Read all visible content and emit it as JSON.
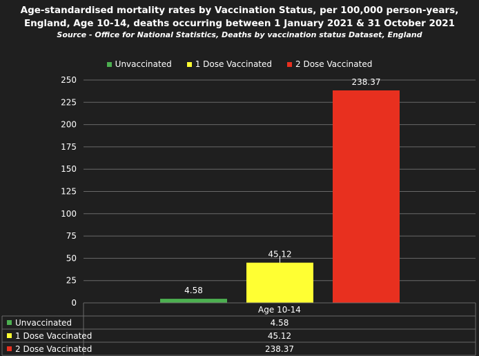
{
  "title_line1": "Age-standardised mortality rates by Vaccination Status, per 100,000 person-years,",
  "title_line2": "England, Age 10-14, deaths occurring between 1 January 2021 & 31 October 2021",
  "subtitle": "Source - Office for National Statistics, Deaths by vaccination status Dataset, England",
  "colors": {
    "unvaccinated": "#4caf50",
    "dose1": "#ffff33",
    "dose2": "#e8301f",
    "background": "#1f1f1f",
    "grid": "#6a6a6a"
  },
  "chart_data": {
    "type": "bar",
    "categories": [
      "Age 10-14"
    ],
    "series": [
      {
        "name": "Unvaccinated",
        "values": [
          4.58
        ],
        "labels": [
          "4.58"
        ]
      },
      {
        "name": "1 Dose Vaccinated",
        "values": [
          45.12
        ],
        "labels": [
          "45.12"
        ]
      },
      {
        "name": "2 Dose Vaccinated",
        "values": [
          238.37
        ],
        "labels": [
          "238.37"
        ]
      }
    ],
    "ylim": [
      0,
      250
    ],
    "yticks": [
      0,
      25,
      50,
      75,
      100,
      125,
      150,
      175,
      200,
      225,
      250
    ],
    "grid": true,
    "legend": "top-center",
    "data_table": true
  }
}
